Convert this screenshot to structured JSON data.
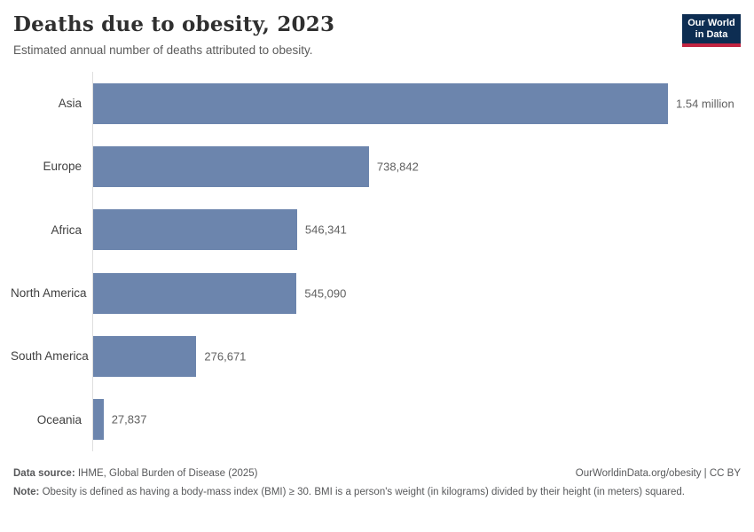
{
  "header": {
    "logo": {
      "line1": "Our World",
      "line2": "in Data"
    }
  },
  "chart_data": {
    "type": "bar",
    "orientation": "horizontal",
    "title": "Deaths due to obesity, 2023",
    "subtitle": "Estimated annual number of deaths attributed to obesity.",
    "categories": [
      "Asia",
      "Europe",
      "Africa",
      "North America",
      "South America",
      "Oceania"
    ],
    "values": [
      1540000,
      738842,
      546341,
      545090,
      276671,
      27837
    ],
    "value_labels": [
      "1.54 million",
      "738,842",
      "546,341",
      "545,090",
      "276,671",
      "27,837"
    ],
    "xlim": [
      0,
      1540000
    ],
    "grid": false,
    "legend": "none",
    "bar_color": "#6c85ad",
    "axis_color": "#dedede"
  },
  "footer": {
    "source_label": "Data source:",
    "source_text": " IHME, Global Burden of Disease (2025)",
    "link_text": "OurWorldinData.org/obesity | CC BY",
    "note_label": "Note:",
    "note_text": " Obesity is defined as having a body-mass index (BMI) ≥ 30. BMI is a person's weight (in kilograms) divided by their height (in meters) squared."
  },
  "colors": {
    "bar": "#6c85ad",
    "axis": "#dedede",
    "logo_navy": "#0d2d52",
    "logo_red": "#c22441",
    "title_text": "#2f2f2f",
    "muted_text": "#5b5b5b"
  }
}
